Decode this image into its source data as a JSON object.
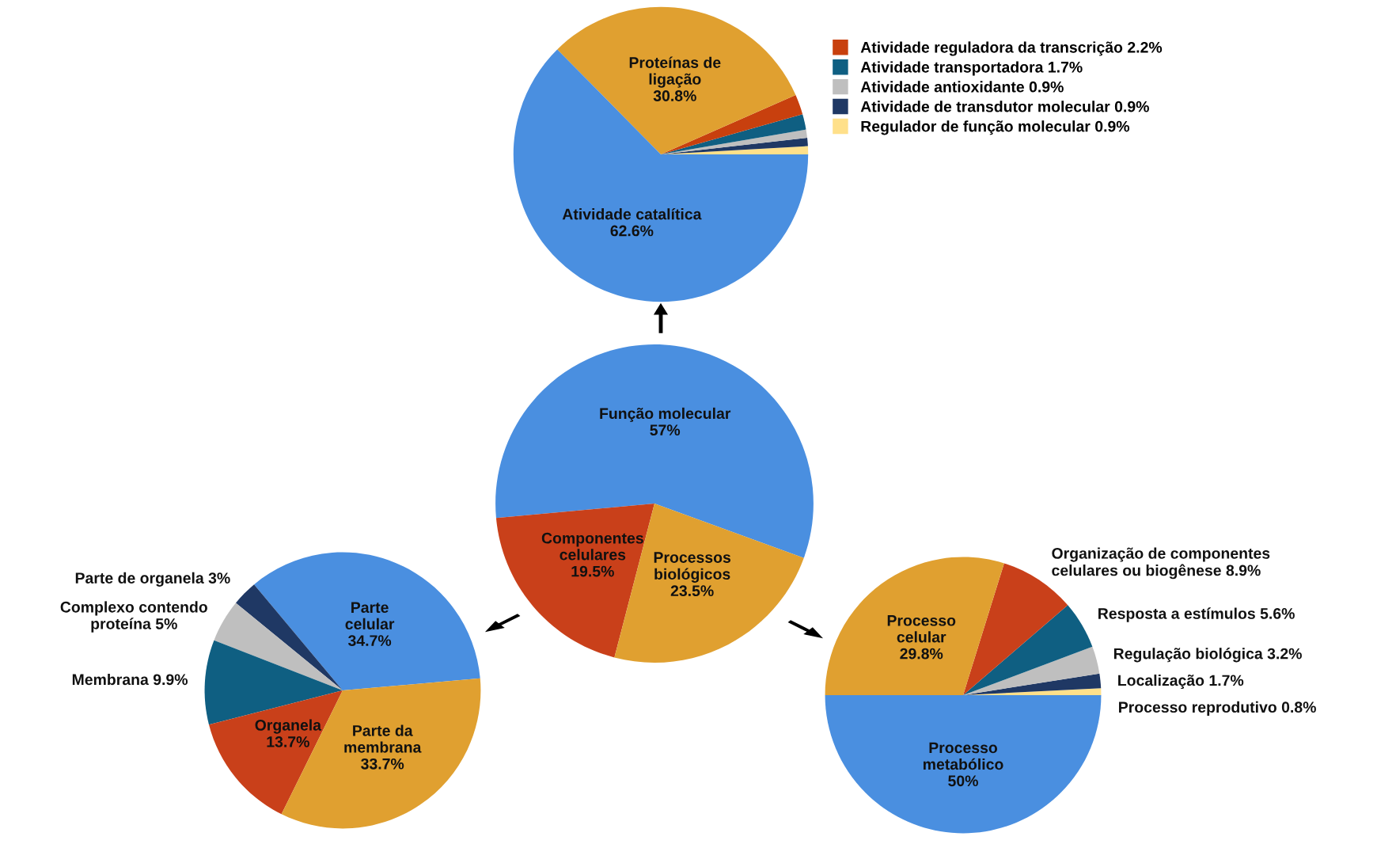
{
  "chart_data": [
    {
      "type": "pie",
      "categories": [
        "Regulador de função molecular",
        "Atividade de transdutor molecular",
        "Atividade antioxidante",
        "Atividade transportadora",
        "Atividade reguladora da transcrição",
        "Proteínas de\nligação",
        "Atividade catalítica"
      ],
      "values": [
        0.9,
        0.9,
        0.9,
        1.7,
        2.2,
        30.8,
        62.6
      ],
      "value_labels": [
        "0.9%",
        "0.9%",
        "0.9%",
        "1.7%",
        "2.2%",
        "30.8%",
        "62.6%"
      ],
      "colors": [
        "#ffe08a",
        "#1f3864",
        "#bfbfbf",
        "#0f5f82",
        "#c8400e",
        "#e0a030",
        "#4a8fe0"
      ],
      "legend": "right"
    },
    {
      "type": "pie",
      "categories": [
        "Função molecular",
        "Componentes\ncelulares",
        "Processos\nbiológicos"
      ],
      "values": [
        57,
        19.5,
        23.5
      ],
      "value_labels": [
        "57%",
        "19.5%",
        "23.5%"
      ],
      "colors": [
        "#4a8fe0",
        "#c9401a",
        "#e0a030"
      ]
    },
    {
      "type": "pie",
      "categories": [
        "Parte\ncelular",
        "Parte de organela",
        "Complexo contendo\nproteína",
        "Membrana",
        "Organela",
        "Parte da\nmembrana"
      ],
      "values": [
        34.7,
        3,
        5,
        9.9,
        13.7,
        33.7
      ],
      "value_labels": [
        "34.7%",
        "3%",
        "5%",
        "9.9%",
        "13.7%",
        "33.7%"
      ],
      "colors": [
        "#4a8fe0",
        "#1f3864",
        "#bfbfbf",
        "#0f5f82",
        "#c9401a",
        "#e0a030"
      ]
    },
    {
      "type": "pie",
      "categories": [
        "Processo reprodutivo",
        "Localização",
        "Regulação biológica",
        "Resposta a estímulos",
        "Organização de componentes\ncelulares ou biogênese",
        "Processo\ncelular",
        "Processo\nmetabólico"
      ],
      "values": [
        0.8,
        1.7,
        3.2,
        5.6,
        8.9,
        29.8,
        50
      ],
      "value_labels": [
        "0.8%",
        "1.7%",
        "3.2%",
        "5.6%",
        "8.9%",
        "29.8%",
        "50%"
      ],
      "colors": [
        "#ffe08a",
        "#1f3864",
        "#bfbfbf",
        "#0f5f82",
        "#c9401a",
        "#e0a030",
        "#4a8fe0"
      ]
    }
  ]
}
